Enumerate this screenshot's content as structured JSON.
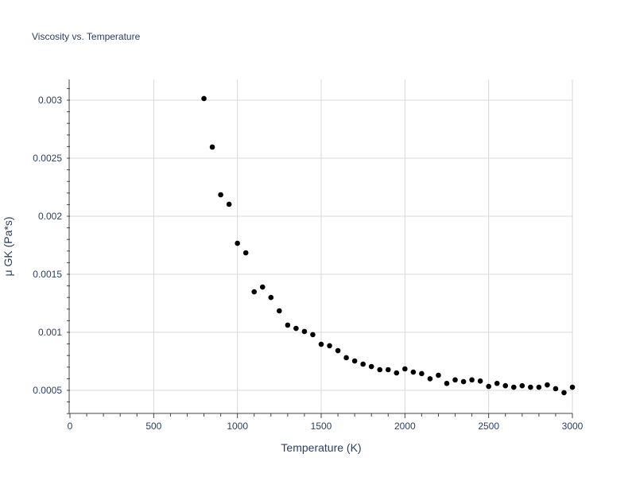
{
  "chart_data": {
    "type": "scatter",
    "title": "Viscosity vs. Temperature",
    "xlabel": "Temperature (K)",
    "ylabel": "μ GK (Pa*s)",
    "xlim": [
      0,
      3000
    ],
    "ylim": [
      0.0003,
      0.00318
    ],
    "xticks": [
      0,
      500,
      1000,
      1500,
      2000,
      2500,
      3000
    ],
    "xtick_labels": [
      "0",
      "500",
      "1000",
      "1500",
      "2000",
      "2500",
      "3000"
    ],
    "yticks": [
      0.0005,
      0.001,
      0.0015,
      0.002,
      0.0025,
      0.003
    ],
    "ytick_labels": [
      "0.0005",
      "0.001",
      "0.0015",
      "0.002",
      "0.0025",
      "0.003"
    ],
    "grid": true,
    "marker_color": "#000000",
    "grid_color": "#d9d9d9",
    "text_color": "#2a3f5f",
    "x": [
      800,
      850,
      900,
      950,
      1000,
      1050,
      1100,
      1150,
      1200,
      1250,
      1300,
      1350,
      1400,
      1450,
      1500,
      1550,
      1600,
      1650,
      1700,
      1750,
      1800,
      1850,
      1900,
      1950,
      2000,
      2050,
      2100,
      2150,
      2200,
      2250,
      2300,
      2350,
      2400,
      2450,
      2500,
      2550,
      2600,
      2650,
      2700,
      2750,
      2800,
      2850,
      2900,
      2950,
      3000
    ],
    "y": [
      0.003014,
      0.002596,
      0.002185,
      0.002103,
      0.001767,
      0.001685,
      0.001349,
      0.00139,
      0.0013,
      0.001185,
      0.001062,
      0.001034,
      0.001007,
      0.00098,
      0.000897,
      0.000884,
      0.000842,
      0.000781,
      0.000753,
      0.000726,
      0.000705,
      0.000678,
      0.000678,
      0.00065,
      0.000685,
      0.000657,
      0.000644,
      0.0006,
      0.00063,
      0.00056,
      0.00059,
      0.000575,
      0.00059,
      0.00058,
      0.000534,
      0.00056,
      0.00054,
      0.000527,
      0.00054,
      0.000527,
      0.000527,
      0.000547,
      0.000514,
      0.00048,
      0.000527
    ]
  }
}
